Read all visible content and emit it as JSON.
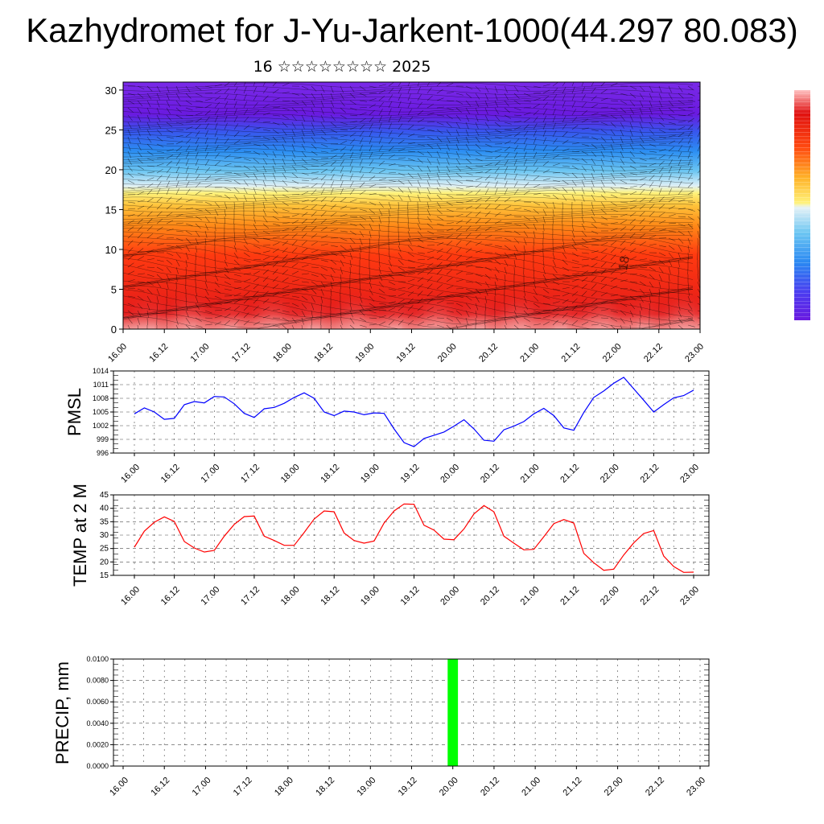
{
  "title": "Kazhydromet for J-Yu-Jarkent-1000(44.297 80.083)",
  "subtitle": "16 ☆☆☆☆☆☆☆☆ 2025",
  "colors": {
    "pmsl_line": "#0000ff",
    "temp_line": "#ff0000",
    "precip_bar": "#00ff00",
    "colorbar": [
      "#6a1ae0",
      "#4b3cf0",
      "#3070f5",
      "#2aa5f0",
      "#7fd0f5",
      "#d7ecf5",
      "#fff27a",
      "#ffd23a",
      "#ffa019",
      "#ff6a10",
      "#ff2a0a",
      "#e81010",
      "#e01818",
      "#ffc2c2"
    ]
  },
  "chart_data": [
    {
      "type": "heatmap",
      "name": "wind-temperature cross-section",
      "x_ticks": [
        "16.00",
        "16.12",
        "17.00",
        "17.12",
        "18.00",
        "18.12",
        "19.00",
        "19.12",
        "20.00",
        "20.12",
        "21.00",
        "21.12",
        "22.00",
        "22.12",
        "23.00"
      ],
      "y_ticks": [
        "0",
        "5",
        "10",
        "15",
        "20",
        "25",
        "30"
      ],
      "ylim": [
        0,
        31
      ],
      "annotation": "18"
    },
    {
      "type": "line",
      "ylabel": "PMSL",
      "x_ticks": [
        "16.00",
        "16.12",
        "17.00",
        "17.12",
        "18.00",
        "18.12",
        "19.00",
        "19.12",
        "20.00",
        "20.12",
        "21.00",
        "21.12",
        "22.00",
        "22.12",
        "23.00"
      ],
      "y_ticks": [
        "996",
        "999",
        "1002",
        "1005",
        "1008",
        "1011",
        "1014"
      ],
      "ylim": [
        996,
        1014
      ],
      "x": [
        0,
        3,
        6,
        9,
        12,
        15,
        18,
        21,
        24,
        27,
        30,
        33,
        36,
        39,
        42,
        45,
        48,
        51,
        54,
        57,
        60,
        63,
        66,
        69,
        72,
        75,
        78,
        81,
        84,
        87,
        90,
        93,
        96,
        99,
        102,
        105,
        108,
        111,
        114,
        117,
        120,
        123,
        126,
        129,
        132,
        135,
        138,
        141,
        144,
        147,
        150,
        153,
        156,
        159,
        162,
        165,
        168
      ],
      "values": [
        1004.6,
        1005.9,
        1005.0,
        1003.4,
        1003.6,
        1006.6,
        1007.3,
        1007.0,
        1008.4,
        1008.3,
        1006.8,
        1004.7,
        1003.8,
        1005.7,
        1006.0,
        1006.9,
        1008.2,
        1009.2,
        1008.0,
        1005.0,
        1004.2,
        1005.2,
        1005.0,
        1004.4,
        1004.8,
        1004.7,
        1001.3,
        998.3,
        997.4,
        999.2,
        999.9,
        1000.6,
        1001.9,
        1003.3,
        1001.3,
        998.8,
        998.6,
        1001.1,
        1001.9,
        1002.9,
        1004.6,
        1005.8,
        1004.2,
        1001.5,
        1001.0,
        1004.9,
        1008.2,
        1009.6,
        1011.3,
        1012.6,
        1010.1,
        1007.6,
        1005.0,
        1006.6,
        1008.1,
        1008.6,
        1009.8
      ]
    },
    {
      "type": "line",
      "ylabel": "TEMP at 2 M",
      "x_ticks": [
        "16.00",
        "16.12",
        "17.00",
        "17.12",
        "18.00",
        "18.12",
        "19.00",
        "19.12",
        "20.00",
        "20.12",
        "21.00",
        "21.12",
        "22.00",
        "22.12",
        "23.00"
      ],
      "y_ticks": [
        "15",
        "20",
        "25",
        "30",
        "35",
        "40",
        "45"
      ],
      "ylim": [
        15,
        45
      ],
      "x": [
        0,
        3,
        6,
        9,
        12,
        15,
        18,
        21,
        24,
        27,
        30,
        33,
        36,
        39,
        42,
        45,
        48,
        51,
        54,
        57,
        60,
        63,
        66,
        69,
        72,
        75,
        78,
        81,
        84,
        87,
        90,
        93,
        96,
        99,
        102,
        105,
        108,
        111,
        114,
        117,
        120,
        123,
        126,
        129,
        132,
        135,
        138,
        141,
        144,
        147,
        150,
        153,
        156,
        159,
        162,
        165,
        168
      ],
      "values": [
        25.5,
        31.5,
        34.8,
        36.8,
        35.1,
        27.6,
        25.2,
        23.7,
        24.3,
        29.6,
        34.0,
        36.9,
        37.1,
        29.6,
        28.0,
        26.2,
        26.2,
        31.0,
        36.0,
        39.0,
        38.7,
        30.8,
        28.0,
        27.0,
        27.8,
        34.5,
        39.0,
        41.6,
        41.5,
        33.7,
        31.9,
        28.5,
        28.3,
        32.3,
        37.9,
        41.0,
        38.7,
        29.6,
        27.0,
        24.5,
        24.7,
        29.4,
        34.3,
        35.8,
        34.5,
        23.2,
        19.7,
        16.9,
        17.3,
        22.6,
        27.1,
        30.6,
        31.7,
        22.2,
        18.3,
        16.1,
        16.2
      ]
    },
    {
      "type": "bar",
      "ylabel": "PRECIP, mm",
      "x_ticks": [
        "16.00",
        "16.12",
        "17.00",
        "17.12",
        "18.00",
        "18.12",
        "19.00",
        "19.12",
        "20.00",
        "20.12",
        "21.00",
        "21.12",
        "22.00",
        "22.12",
        "23.00"
      ],
      "y_ticks": [
        "0.0000",
        "0.0020",
        "0.0040",
        "0.0060",
        "0.0080",
        "0.0100"
      ],
      "ylim": [
        0,
        0.01
      ],
      "bars": [
        {
          "x": 96,
          "width": 3,
          "value": 0.01
        }
      ]
    }
  ]
}
